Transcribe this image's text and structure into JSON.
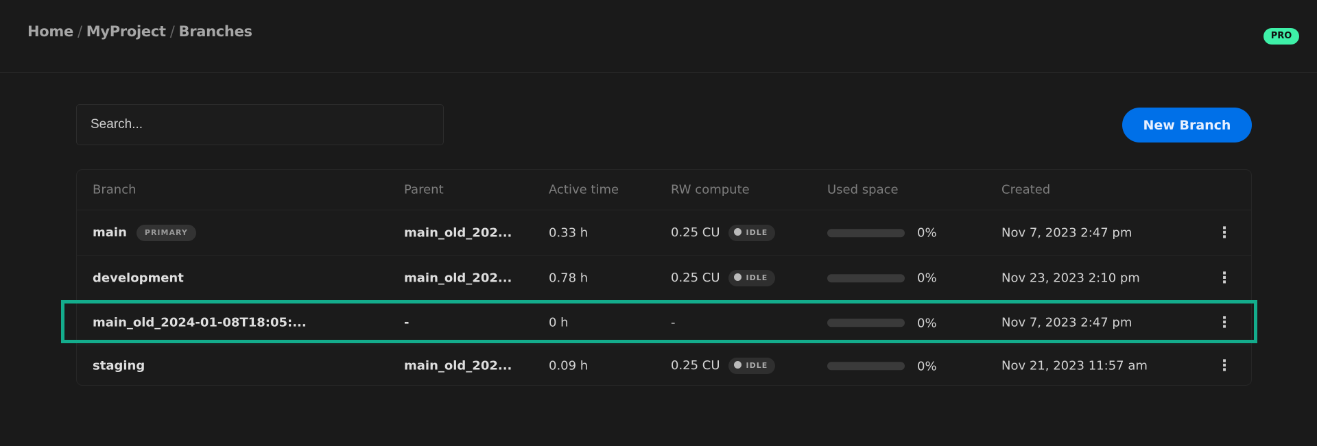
{
  "breadcrumb": [
    "Home",
    "MyProject",
    "Branches"
  ],
  "plan_badge": "PRO",
  "search": {
    "placeholder": "Search...",
    "value": ""
  },
  "new_branch_label": "New Branch",
  "columns": [
    "Branch",
    "Parent",
    "Active time",
    "RW compute",
    "Used space",
    "Created"
  ],
  "rows": [
    {
      "branch": "main",
      "badge": "PRIMARY",
      "parent": "main_old_202...",
      "active": "0.33 h",
      "compute": "0.25 CU",
      "status": "IDLE",
      "used_pct": 0,
      "used": "0%",
      "created": "Nov 7, 2023 2:47 pm"
    },
    {
      "branch": "development",
      "badge": null,
      "parent": "main_old_202...",
      "active": "0.78 h",
      "compute": "0.25 CU",
      "status": "IDLE",
      "used_pct": 0,
      "used": "0%",
      "created": "Nov 23, 2023 2:10 pm"
    },
    {
      "branch": "main_old_2024-01-08T18:05:...",
      "badge": null,
      "parent": "-",
      "active": "0 h",
      "compute": "-",
      "status": null,
      "used_pct": 0,
      "used": "0%",
      "created": "Nov 7, 2023 2:47 pm",
      "highlighted": true
    },
    {
      "branch": "staging",
      "badge": null,
      "parent": "main_old_202...",
      "active": "0.09 h",
      "compute": "0.25 CU",
      "status": "IDLE",
      "used_pct": 0,
      "used": "0%",
      "created": "Nov 21, 2023 11:57 am"
    }
  ],
  "colors": {
    "accent": "#0070e8",
    "pro": "#3ef0a8",
    "highlight": "#14ac8c"
  }
}
